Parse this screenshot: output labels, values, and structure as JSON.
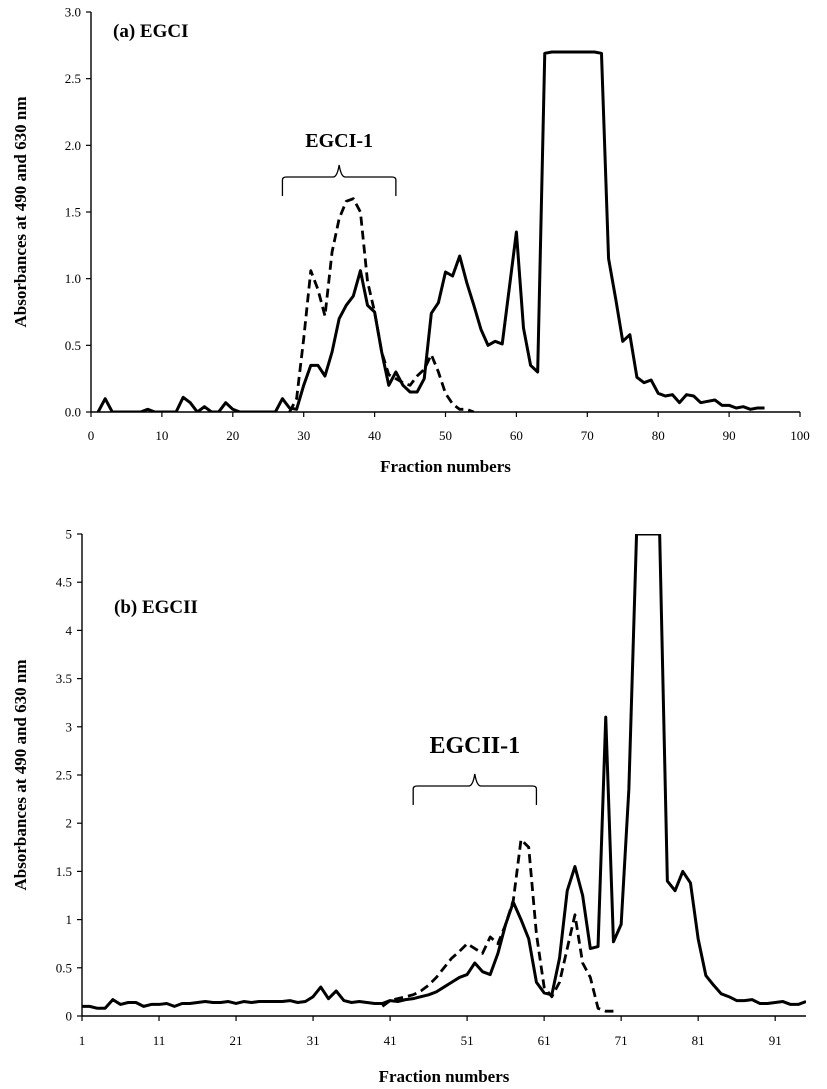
{
  "chart_data": [
    {
      "type": "line",
      "title": "(a) EGCI",
      "xlabel": "Fraction numbers",
      "ylabel": "Absorbances at 490 and 630 nm",
      "xlim": [
        0,
        100
      ],
      "ylim": [
        0,
        3.0
      ],
      "x_ticks": [
        "0",
        "10",
        "20",
        "30",
        "40",
        "50",
        "60",
        "70",
        "80",
        "90",
        "100"
      ],
      "y_ticks": [
        "0.0",
        "0.5",
        "1.0",
        "1.5",
        "2.0",
        "2.5",
        "3.0"
      ],
      "annotation": {
        "label": "EGCI-1",
        "x_start": 27,
        "x_end": 43
      },
      "series": [
        {
          "style": "solid",
          "x": [
            1,
            2,
            3,
            4,
            5,
            6,
            7,
            8,
            9,
            10,
            11,
            12,
            13,
            14,
            15,
            16,
            17,
            18,
            19,
            20,
            21,
            22,
            23,
            24,
            25,
            26,
            27,
            28,
            29,
            30,
            31,
            32,
            33,
            34,
            35,
            36,
            37,
            38,
            39,
            40,
            41,
            42,
            43,
            44,
            45,
            46,
            47,
            48,
            49,
            50,
            51,
            52,
            53,
            54,
            55,
            56,
            57,
            58,
            59,
            60,
            61,
            62,
            63,
            64,
            65,
            66,
            67,
            68,
            69,
            70,
            71,
            72,
            73,
            74,
            75,
            76,
            77,
            78,
            79,
            80,
            81,
            82,
            83,
            84,
            85,
            86,
            87,
            88,
            89,
            90,
            91,
            92,
            93,
            94,
            95
          ],
          "values": [
            0.0,
            0.1,
            0.0,
            0.0,
            0.0,
            0.0,
            0.0,
            0.02,
            0.0,
            0.0,
            0.0,
            0.0,
            0.11,
            0.07,
            0.0,
            0.04,
            0.0,
            0.0,
            0.07,
            0.02,
            0.0,
            0.0,
            0.0,
            0.0,
            0.0,
            0.0,
            0.1,
            0.03,
            0.02,
            0.2,
            0.35,
            0.35,
            0.27,
            0.45,
            0.7,
            0.8,
            0.87,
            1.06,
            0.8,
            0.75,
            0.45,
            0.2,
            0.3,
            0.2,
            0.15,
            0.15,
            0.25,
            0.74,
            0.82,
            1.05,
            1.02,
            1.17,
            0.97,
            0.8,
            0.62,
            0.5,
            0.53,
            0.51,
            0.93,
            1.35,
            0.63,
            0.35,
            0.3,
            2.69,
            2.7,
            2.7,
            2.7,
            2.7,
            2.7,
            2.7,
            2.7,
            2.69,
            1.15,
            0.85,
            0.53,
            0.58,
            0.26,
            0.22,
            0.24,
            0.14,
            0.12,
            0.13,
            0.07,
            0.13,
            0.12,
            0.07,
            0.08,
            0.09,
            0.05,
            0.05,
            0.03,
            0.04,
            0.02,
            0.03,
            0.03
          ]
        },
        {
          "style": "dashed",
          "x": [
            28,
            29,
            30,
            31,
            32,
            33,
            34,
            35,
            36,
            37,
            38,
            39,
            40,
            41,
            42,
            43,
            44,
            45,
            46,
            47,
            48,
            49,
            50,
            51,
            52,
            53,
            54
          ],
          "values": [
            0.0,
            0.1,
            0.55,
            1.06,
            0.92,
            0.72,
            1.2,
            1.45,
            1.58,
            1.6,
            1.5,
            0.98,
            0.75,
            0.45,
            0.28,
            0.25,
            0.22,
            0.2,
            0.27,
            0.32,
            0.43,
            0.3,
            0.14,
            0.06,
            0.02,
            0.02,
            0.0
          ]
        }
      ]
    },
    {
      "type": "line",
      "title": "(b) EGCII",
      "xlabel": "Fraction numbers",
      "ylabel": "Absorbances at 490 and 630 nm",
      "xlim": [
        1,
        95
      ],
      "ylim": [
        0,
        5
      ],
      "x_ticks": [
        "1",
        "11",
        "21",
        "31",
        "41",
        "51",
        "61",
        "71",
        "81",
        "91"
      ],
      "y_ticks": [
        "0",
        "0.5",
        "1",
        "1.5",
        "2",
        "2.5",
        "3",
        "3.5",
        "4",
        "4.5",
        "5"
      ],
      "annotation": {
        "label": "EGCII-1",
        "x_start": 44,
        "x_end": 60
      },
      "series": [
        {
          "style": "solid",
          "x": [
            1,
            2,
            3,
            4,
            5,
            6,
            7,
            8,
            9,
            10,
            11,
            12,
            13,
            14,
            15,
            16,
            17,
            18,
            19,
            20,
            21,
            22,
            23,
            24,
            25,
            26,
            27,
            28,
            29,
            30,
            31,
            32,
            33,
            34,
            35,
            36,
            37,
            38,
            39,
            40,
            41,
            42,
            43,
            44,
            45,
            46,
            47,
            48,
            49,
            50,
            51,
            52,
            53,
            54,
            55,
            56,
            57,
            58,
            59,
            60,
            61,
            62,
            63,
            64,
            65,
            66,
            67,
            68,
            69,
            70,
            71,
            72,
            73,
            74,
            75,
            76,
            77,
            78,
            79,
            80,
            81,
            82,
            83,
            84,
            85,
            86,
            87,
            88,
            89,
            90,
            91,
            92,
            93,
            94,
            95
          ],
          "values": [
            0.1,
            0.1,
            0.08,
            0.08,
            0.17,
            0.12,
            0.14,
            0.14,
            0.1,
            0.12,
            0.12,
            0.13,
            0.1,
            0.13,
            0.13,
            0.14,
            0.15,
            0.14,
            0.14,
            0.15,
            0.13,
            0.15,
            0.14,
            0.15,
            0.15,
            0.15,
            0.15,
            0.16,
            0.14,
            0.15,
            0.2,
            0.3,
            0.18,
            0.26,
            0.16,
            0.14,
            0.15,
            0.14,
            0.13,
            0.13,
            0.16,
            0.15,
            0.17,
            0.18,
            0.2,
            0.22,
            0.25,
            0.3,
            0.35,
            0.4,
            0.43,
            0.55,
            0.46,
            0.43,
            0.65,
            0.95,
            1.18,
            1.0,
            0.8,
            0.35,
            0.24,
            0.22,
            0.6,
            1.3,
            1.55,
            1.25,
            0.7,
            0.72,
            3.1,
            0.77,
            0.95,
            2.35,
            5.0,
            5.0,
            5.0,
            5.0,
            1.4,
            1.3,
            1.5,
            1.38,
            0.8,
            0.42,
            0.32,
            0.23,
            0.2,
            0.16,
            0.16,
            0.17,
            0.13,
            0.13,
            0.14,
            0.15,
            0.12,
            0.12,
            0.15
          ]
        },
        {
          "style": "dashed",
          "x": [
            40,
            41,
            42,
            43,
            44,
            45,
            46,
            47,
            48,
            49,
            50,
            51,
            52,
            53,
            54,
            55,
            56,
            57,
            58,
            59,
            60,
            61,
            62,
            63,
            64,
            65,
            66,
            67,
            68,
            69,
            70
          ],
          "values": [
            0.1,
            0.16,
            0.18,
            0.2,
            0.22,
            0.26,
            0.32,
            0.4,
            0.5,
            0.6,
            0.67,
            0.75,
            0.7,
            0.65,
            0.82,
            0.75,
            0.95,
            1.2,
            1.83,
            1.75,
            0.85,
            0.3,
            0.2,
            0.35,
            0.7,
            1.05,
            0.55,
            0.4,
            0.08,
            0.05,
            0.05
          ]
        }
      ]
    }
  ]
}
